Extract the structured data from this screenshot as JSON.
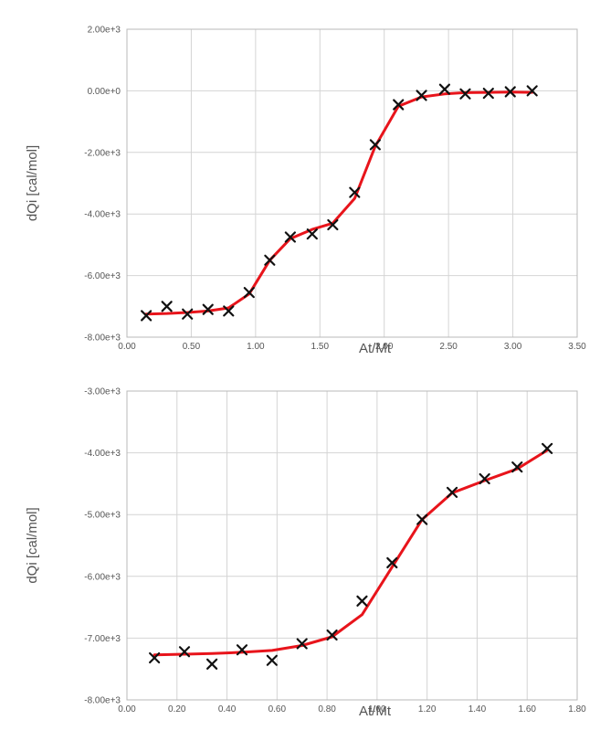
{
  "chart_data": [
    {
      "type": "scatter",
      "xlabel": "At/Mt",
      "ylabel": "dQi [cal/mol]",
      "xlim": [
        0,
        3.5
      ],
      "ylim": [
        -8000,
        2000
      ],
      "x_ticks": [
        0,
        0.5,
        1.0,
        1.5,
        2.0,
        2.5,
        3.0,
        3.5
      ],
      "x_tick_labels": [
        "0.00",
        "0.50",
        "1.00",
        "1.50",
        "2.00",
        "2.50",
        "3.00",
        "3.50"
      ],
      "y_ticks": [
        2000,
        0,
        -2000,
        -4000,
        -6000,
        -8000
      ],
      "y_tick_labels": [
        "2.00e+3",
        "0.00e+0",
        "-2.00e+3",
        "-4.00e+3",
        "-6.00e+3",
        "-8.00e+3"
      ],
      "grid": true,
      "marker_color": "#111111",
      "fit_color": "#e8141b",
      "points": {
        "x": [
          0.15,
          0.31,
          0.47,
          0.63,
          0.79,
          0.95,
          1.11,
          1.27,
          1.44,
          1.6,
          1.77,
          1.93,
          2.11,
          2.29,
          2.47,
          2.63,
          2.81,
          2.98,
          3.15
        ],
        "y": [
          -7300,
          -7000,
          -7250,
          -7100,
          -7150,
          -6550,
          -5500,
          -4750,
          -4650,
          -4350,
          -3300,
          -1750,
          -450,
          -150,
          50,
          -100,
          -80,
          -30,
          0
        ]
      },
      "fit": {
        "x": [
          0.15,
          0.31,
          0.47,
          0.63,
          0.79,
          0.95,
          1.11,
          1.27,
          1.44,
          1.6,
          1.77,
          1.93,
          2.11,
          2.29,
          2.47,
          2.63,
          2.81,
          2.98,
          3.15
        ],
        "y": [
          -7250,
          -7230,
          -7200,
          -7150,
          -7050,
          -6600,
          -5500,
          -4800,
          -4500,
          -4300,
          -3500,
          -1800,
          -500,
          -200,
          -100,
          -60,
          -50,
          -40,
          -50
        ]
      }
    },
    {
      "type": "scatter",
      "xlabel": "At/Mt",
      "ylabel": "dQi [cal/mol]",
      "xlim": [
        0,
        1.8
      ],
      "ylim": [
        -8000,
        -3000
      ],
      "x_ticks": [
        0,
        0.2,
        0.4,
        0.6,
        0.8,
        1.0,
        1.2,
        1.4,
        1.6,
        1.8
      ],
      "x_tick_labels": [
        "0.00",
        "0.20",
        "0.40",
        "0.60",
        "0.80",
        "1.00",
        "1.20",
        "1.40",
        "1.60",
        "1.80"
      ],
      "y_ticks": [
        -3000,
        -4000,
        -5000,
        -6000,
        -7000,
        -8000
      ],
      "y_tick_labels": [
        "-3.00e+3",
        "-4.00e+3",
        "-5.00e+3",
        "-6.00e+3",
        "-7.00e+3",
        "-8.00e+3"
      ],
      "grid": true,
      "marker_color": "#111111",
      "fit_color": "#e8141b",
      "points": {
        "x": [
          0.11,
          0.23,
          0.34,
          0.46,
          0.58,
          0.7,
          0.82,
          0.94,
          1.06,
          1.18,
          1.3,
          1.43,
          1.56,
          1.68
        ],
        "y": [
          -7320,
          -7220,
          -7420,
          -7190,
          -7360,
          -7090,
          -6950,
          -6400,
          -5780,
          -5080,
          -4640,
          -4420,
          -4230,
          -3930
        ]
      },
      "fit": {
        "x": [
          0.11,
          0.23,
          0.34,
          0.46,
          0.58,
          0.7,
          0.82,
          0.94,
          1.06,
          1.18,
          1.3,
          1.43,
          1.56,
          1.68
        ],
        "y": [
          -7270,
          -7260,
          -7250,
          -7230,
          -7200,
          -7120,
          -6980,
          -6620,
          -5850,
          -5080,
          -4650,
          -4450,
          -4260,
          -3960
        ]
      }
    }
  ]
}
